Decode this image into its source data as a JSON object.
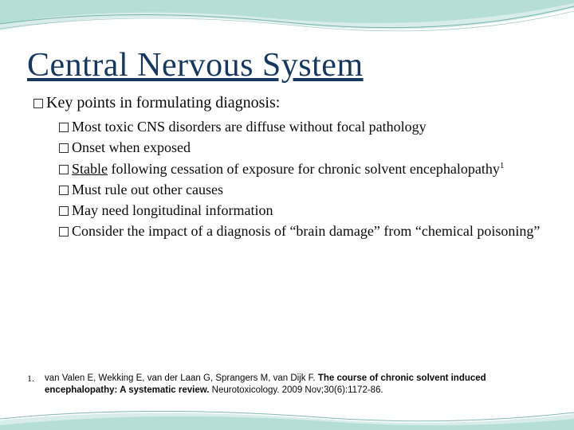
{
  "slide": {
    "title": "Central Nervous System",
    "main_point": "Key points in formulating diagnosis:",
    "sub_items": [
      {
        "html": "Most toxic CNS disorders are diffuse without focal pathology"
      },
      {
        "html": "Onset when exposed"
      },
      {
        "html": "<span class='u'>Stable</span> following cessation of exposure for chronic solvent encephalopathy<span class='sup'>1</span>"
      },
      {
        "html": "Must rule out other causes"
      },
      {
        "html": "May need longitudinal information"
      },
      {
        "html": "Consider the impact of a diagnosis of “brain damage” from “chemical poisoning”"
      }
    ],
    "reference": {
      "num": "1.",
      "text": "van Valen E, Wekking E, van der Laan G, Sprangers M, van Dijk F.  <span class='bold'>The course of chronic solvent induced encephalopathy: A systematic review.</span> Neurotoxicology. 2009 Nov;30(6):1172-86."
    }
  },
  "style": {
    "title_color": "#17375e",
    "wave_color": "#9ed3cc",
    "wave_line": "#4f9a94",
    "background": "#ffffff"
  }
}
